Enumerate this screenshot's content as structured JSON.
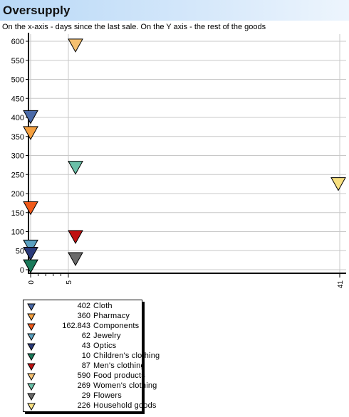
{
  "header": {
    "title": "Oversupply",
    "subtitle": "On the x-axis - days since the last sale. On the Y axis - the rest of the goods"
  },
  "chart_data": {
    "type": "scatter",
    "title": "Oversupply",
    "subtitle": "On the x-axis - days since the last sale. On the Y axis - the rest of the goods",
    "xlabel": "",
    "ylabel": "",
    "ylim": [
      0,
      600
    ],
    "y_ticks": [
      "0",
      "50",
      "100",
      "150",
      "200",
      "250",
      "300",
      "350",
      "400",
      "450",
      "500",
      "550",
      "600"
    ],
    "x_ticks": [
      "0",
      "5",
      "41"
    ],
    "x_tick_values": [
      0,
      5,
      41
    ],
    "grid": true,
    "marker": "triangle-down",
    "legend_position": "bottom-left",
    "series": [
      {
        "name": "Cloth",
        "value_label": "402",
        "x": 0,
        "y": 402,
        "color": "#4a6aa8"
      },
      {
        "name": "Pharmacy",
        "value_label": "360",
        "x": 0,
        "y": 360,
        "color": "#f4a040"
      },
      {
        "name": "Components",
        "value_label": "162.843",
        "x": 0,
        "y": 162.843,
        "color": "#f05a1a"
      },
      {
        "name": "Jewelry",
        "value_label": "62",
        "x": 0,
        "y": 62,
        "color": "#5aa0c0"
      },
      {
        "name": "Optics",
        "value_label": "43",
        "x": 0,
        "y": 43,
        "color": "#2a3a7a"
      },
      {
        "name": "Children's clothing",
        "value_label": "10",
        "x": 0,
        "y": 10,
        "color": "#1a7a5a"
      },
      {
        "name": "Men's clothing",
        "value_label": "87",
        "x": 5,
        "y": 87,
        "color": "#c01010"
      },
      {
        "name": "Food products",
        "value_label": "590",
        "x": 5,
        "y": 590,
        "color": "#f4c070"
      },
      {
        "name": "Women's clothing",
        "value_label": "269",
        "x": 5,
        "y": 269,
        "color": "#6ac0a8"
      },
      {
        "name": "Flowers",
        "value_label": "29",
        "x": 5,
        "y": 29,
        "color": "#6a6a6a"
      },
      {
        "name": "Household goods",
        "value_label": "226",
        "x": 41,
        "y": 226,
        "color": "#f8e080"
      }
    ]
  }
}
